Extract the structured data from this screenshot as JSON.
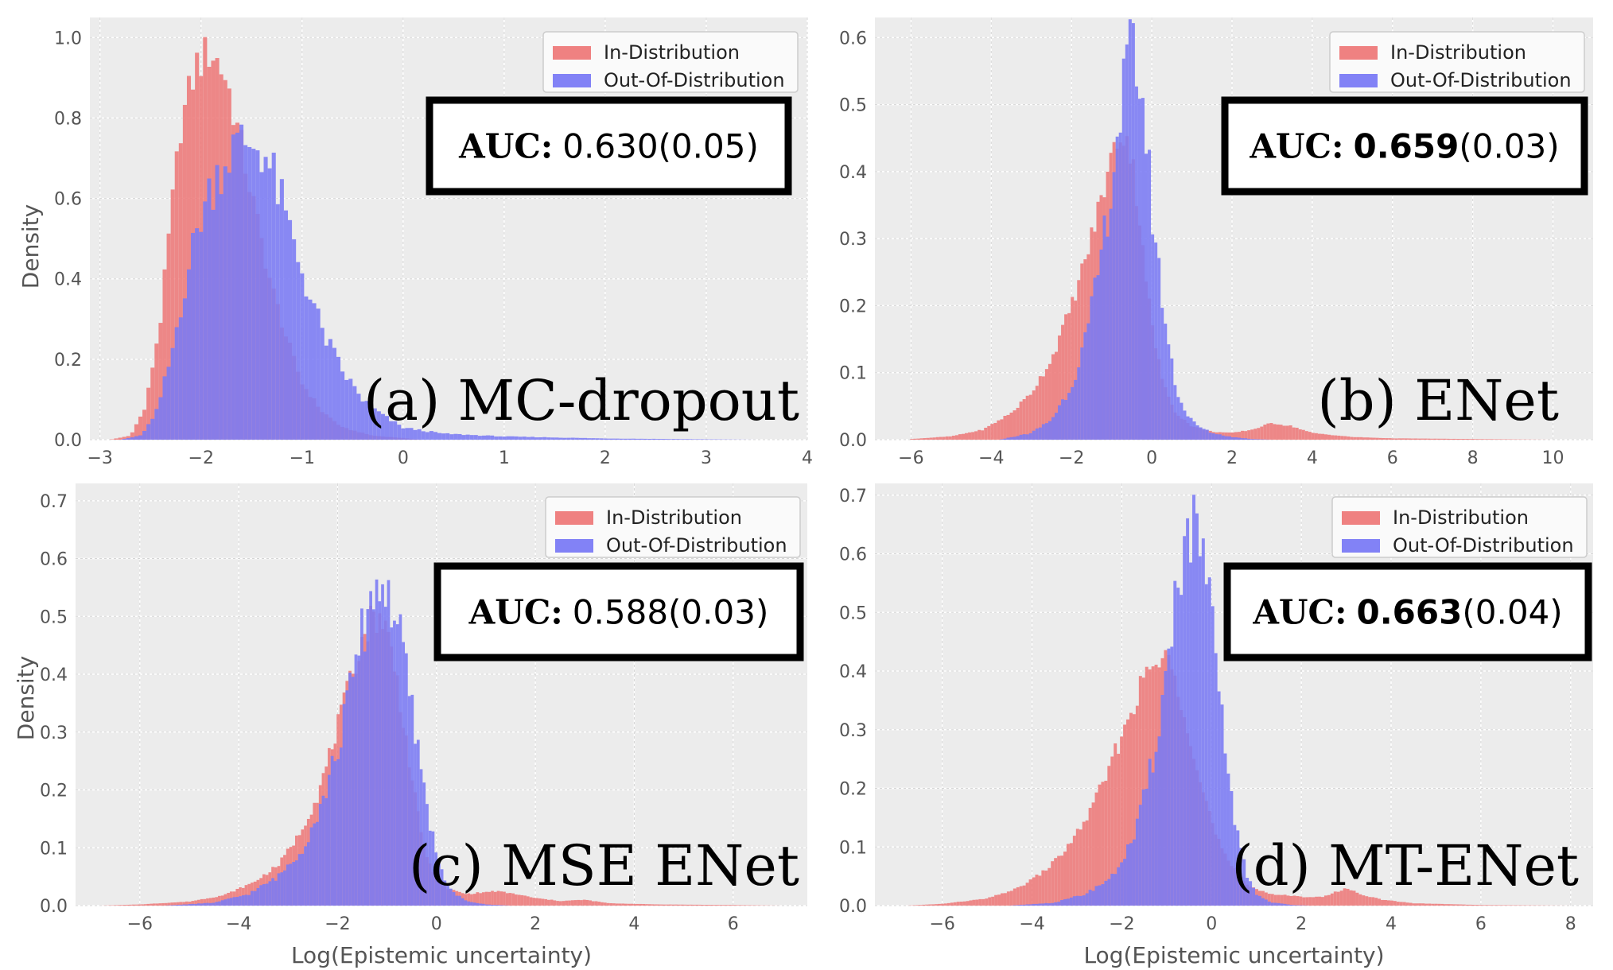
{
  "chart_data": [
    {
      "type": "histogram",
      "panel_label": "(a) MC-dropout",
      "auc_label": "AUC:",
      "auc_value": "0.630",
      "auc_bold": false,
      "auc_std": "(0.05)",
      "xlabel": "",
      "ylabel": "Density",
      "xlim": [
        -3.1,
        4.0
      ],
      "ylim": [
        0,
        1.05
      ],
      "xticks": [
        -3,
        -2,
        -1,
        0,
        1,
        2,
        3,
        4
      ],
      "yticks": [
        0.0,
        0.2,
        0.4,
        0.6,
        0.8,
        1.0
      ],
      "bin_width": 0.04,
      "grid": true,
      "legend_position": "top-right",
      "series": [
        {
          "name": "In-Distribution",
          "color": "#ee7a7a",
          "curve": [
            [
              -2.9,
              0
            ],
            [
              -2.7,
              0.01
            ],
            [
              -2.55,
              0.08
            ],
            [
              -2.4,
              0.3
            ],
            [
              -2.3,
              0.55
            ],
            [
              -2.2,
              0.78
            ],
            [
              -2.05,
              0.93
            ],
            [
              -1.9,
              0.97
            ],
            [
              -1.75,
              0.9
            ],
            [
              -1.6,
              0.73
            ],
            [
              -1.45,
              0.55
            ],
            [
              -1.3,
              0.38
            ],
            [
              -1.15,
              0.25
            ],
            [
              -1.0,
              0.14
            ],
            [
              -0.8,
              0.07
            ],
            [
              -0.6,
              0.03
            ],
            [
              -0.3,
              0.01
            ],
            [
              0.2,
              0
            ]
          ]
        },
        {
          "name": "Out-Of-Distribution",
          "color": "#7b7bf5",
          "curve": [
            [
              -2.8,
              0
            ],
            [
              -2.6,
              0.01
            ],
            [
              -2.45,
              0.06
            ],
            [
              -2.3,
              0.2
            ],
            [
              -2.15,
              0.4
            ],
            [
              -2.0,
              0.56
            ],
            [
              -1.85,
              0.66
            ],
            [
              -1.7,
              0.72
            ],
            [
              -1.55,
              0.74
            ],
            [
              -1.4,
              0.73
            ],
            [
              -1.25,
              0.63
            ],
            [
              -1.1,
              0.5
            ],
            [
              -0.95,
              0.38
            ],
            [
              -0.8,
              0.27
            ],
            [
              -0.6,
              0.17
            ],
            [
              -0.4,
              0.1
            ],
            [
              -0.2,
              0.06
            ],
            [
              0.0,
              0.03
            ],
            [
              0.4,
              0.015
            ],
            [
              1.0,
              0.008
            ],
            [
              2.0,
              0.003
            ],
            [
              3.5,
              0
            ]
          ]
        }
      ]
    },
    {
      "type": "histogram",
      "panel_label": "(b) ENet",
      "auc_label": "AUC:",
      "auc_value": "0.659",
      "auc_bold": true,
      "auc_std": "(0.03)",
      "xlabel": "",
      "ylabel": "",
      "xlim": [
        -6.9,
        11.0
      ],
      "ylim": [
        0,
        0.63
      ],
      "xticks": [
        -6,
        -4,
        -2,
        0,
        2,
        4,
        6,
        8,
        10
      ],
      "yticks": [
        0.0,
        0.1,
        0.2,
        0.3,
        0.4,
        0.5,
        0.6
      ],
      "bin_width": 0.08,
      "grid": true,
      "legend_position": "top-right",
      "series": [
        {
          "name": "In-Distribution",
          "color": "#ee7a7a",
          "curve": [
            [
              -6,
              0.001
            ],
            [
              -5,
              0.005
            ],
            [
              -4.2,
              0.015
            ],
            [
              -3.5,
              0.04
            ],
            [
              -3,
              0.07
            ],
            [
              -2.5,
              0.12
            ],
            [
              -2,
              0.2
            ],
            [
              -1.6,
              0.28
            ],
            [
              -1.3,
              0.35
            ],
            [
              -1.0,
              0.42
            ],
            [
              -0.8,
              0.46
            ],
            [
              -0.6,
              0.45
            ],
            [
              -0.4,
              0.38
            ],
            [
              -0.2,
              0.28
            ],
            [
              0,
              0.17
            ],
            [
              0.3,
              0.08
            ],
            [
              0.6,
              0.04
            ],
            [
              1,
              0.02
            ],
            [
              1.5,
              0.012
            ],
            [
              2,
              0.01
            ],
            [
              2.5,
              0.015
            ],
            [
              3,
              0.025
            ],
            [
              3.5,
              0.02
            ],
            [
              4,
              0.01
            ],
            [
              5,
              0.004
            ],
            [
              6,
              0.002
            ],
            [
              8,
              0.001
            ],
            [
              10,
              0
            ]
          ]
        },
        {
          "name": "Out-Of-Distribution",
          "color": "#7b7bf5",
          "curve": [
            [
              -3.8,
              0
            ],
            [
              -3,
              0.01
            ],
            [
              -2.5,
              0.03
            ],
            [
              -2,
              0.08
            ],
            [
              -1.6,
              0.16
            ],
            [
              -1.3,
              0.26
            ],
            [
              -1.0,
              0.38
            ],
            [
              -0.8,
              0.48
            ],
            [
              -0.6,
              0.56
            ],
            [
              -0.45,
              0.58
            ],
            [
              -0.3,
              0.54
            ],
            [
              -0.15,
              0.46
            ],
            [
              0,
              0.35
            ],
            [
              0.2,
              0.24
            ],
            [
              0.4,
              0.15
            ],
            [
              0.6,
              0.08
            ],
            [
              0.8,
              0.045
            ],
            [
              1.1,
              0.022
            ],
            [
              1.5,
              0.01
            ],
            [
              2,
              0.004
            ],
            [
              2.5,
              0.001
            ],
            [
              3,
              0
            ]
          ]
        }
      ]
    },
    {
      "type": "histogram",
      "panel_label": "(c) MSE ENet",
      "auc_label": "AUC:",
      "auc_value": "0.588",
      "auc_bold": false,
      "auc_std": "(0.03)",
      "xlabel": "Log(Epistemic uncertainty)",
      "ylabel": "Density",
      "xlim": [
        -7.3,
        7.5
      ],
      "ylim": [
        0,
        0.73
      ],
      "xticks": [
        -6,
        -4,
        -2,
        0,
        2,
        4,
        6
      ],
      "yticks": [
        0.0,
        0.1,
        0.2,
        0.3,
        0.4,
        0.5,
        0.6,
        0.7
      ],
      "bin_width": 0.06,
      "grid": true,
      "legend_position": "top-right",
      "series": [
        {
          "name": "In-Distribution",
          "color": "#ee7a7a",
          "curve": [
            [
              -6.8,
              0
            ],
            [
              -6,
              0.002
            ],
            [
              -5,
              0.007
            ],
            [
              -4.3,
              0.018
            ],
            [
              -3.7,
              0.04
            ],
            [
              -3.2,
              0.07
            ],
            [
              -2.8,
              0.12
            ],
            [
              -2.4,
              0.19
            ],
            [
              -2.1,
              0.28
            ],
            [
              -1.8,
              0.37
            ],
            [
              -1.55,
              0.45
            ],
            [
              -1.3,
              0.5
            ],
            [
              -1.1,
              0.5
            ],
            [
              -0.9,
              0.44
            ],
            [
              -0.7,
              0.34
            ],
            [
              -0.5,
              0.22
            ],
            [
              -0.3,
              0.12
            ],
            [
              -0.1,
              0.06
            ],
            [
              0.2,
              0.03
            ],
            [
              0.6,
              0.02
            ],
            [
              1.2,
              0.025
            ],
            [
              1.6,
              0.02
            ],
            [
              2,
              0.013
            ],
            [
              2.5,
              0.008
            ],
            [
              3,
              0.01
            ],
            [
              3.5,
              0.004
            ],
            [
              4.5,
              0.002
            ],
            [
              6,
              0.001
            ],
            [
              7,
              0
            ]
          ]
        },
        {
          "name": "Out-Of-Distribution",
          "color": "#7b7bf5",
          "curve": [
            [
              -5.5,
              0
            ],
            [
              -4.5,
              0.005
            ],
            [
              -3.8,
              0.02
            ],
            [
              -3.2,
              0.05
            ],
            [
              -2.7,
              0.1
            ],
            [
              -2.3,
              0.18
            ],
            [
              -2.0,
              0.27
            ],
            [
              -1.75,
              0.37
            ],
            [
              -1.5,
              0.47
            ],
            [
              -1.3,
              0.54
            ],
            [
              -1.1,
              0.56
            ],
            [
              -0.9,
              0.52
            ],
            [
              -0.7,
              0.45
            ],
            [
              -0.5,
              0.34
            ],
            [
              -0.3,
              0.23
            ],
            [
              -0.1,
              0.13
            ],
            [
              0.1,
              0.06
            ],
            [
              0.3,
              0.025
            ],
            [
              0.6,
              0.008
            ],
            [
              1,
              0.002
            ],
            [
              1.5,
              0
            ]
          ]
        }
      ]
    },
    {
      "type": "histogram",
      "panel_label": "(d) MT-ENet",
      "auc_label": "AUC:",
      "auc_value": "0.663",
      "auc_bold": true,
      "auc_std": "(0.04)",
      "xlabel": "Log(Epistemic uncertainty)",
      "ylabel": "",
      "xlim": [
        -7.5,
        8.5
      ],
      "ylim": [
        0,
        0.72
      ],
      "xticks": [
        -6,
        -4,
        -2,
        0,
        2,
        4,
        6,
        8
      ],
      "yticks": [
        0.0,
        0.1,
        0.2,
        0.3,
        0.4,
        0.5,
        0.6,
        0.7
      ],
      "bin_width": 0.07,
      "grid": true,
      "legend_position": "top-right",
      "series": [
        {
          "name": "In-Distribution",
          "color": "#ee7a7a",
          "curve": [
            [
              -6.8,
              0
            ],
            [
              -6,
              0.003
            ],
            [
              -5,
              0.012
            ],
            [
              -4.3,
              0.03
            ],
            [
              -3.7,
              0.06
            ],
            [
              -3.2,
              0.1
            ],
            [
              -2.7,
              0.16
            ],
            [
              -2.3,
              0.23
            ],
            [
              -1.9,
              0.31
            ],
            [
              -1.6,
              0.37
            ],
            [
              -1.3,
              0.41
            ],
            [
              -1.0,
              0.42
            ],
            [
              -0.8,
              0.39
            ],
            [
              -0.5,
              0.3
            ],
            [
              -0.2,
              0.2
            ],
            [
              0.1,
              0.12
            ],
            [
              0.4,
              0.07
            ],
            [
              0.8,
              0.035
            ],
            [
              1.3,
              0.02
            ],
            [
              2,
              0.015
            ],
            [
              2.5,
              0.015
            ],
            [
              3,
              0.03
            ],
            [
              3.3,
              0.02
            ],
            [
              3.8,
              0.01
            ],
            [
              4.5,
              0.004
            ],
            [
              6,
              0.001
            ],
            [
              8,
              0
            ]
          ]
        },
        {
          "name": "Out-Of-Distribution",
          "color": "#7b7bf5",
          "curve": [
            [
              -4.5,
              0
            ],
            [
              -3.5,
              0.005
            ],
            [
              -2.8,
              0.02
            ],
            [
              -2.2,
              0.05
            ],
            [
              -1.7,
              0.12
            ],
            [
              -1.3,
              0.25
            ],
            [
              -1.0,
              0.4
            ],
            [
              -0.8,
              0.53
            ],
            [
              -0.6,
              0.62
            ],
            [
              -0.4,
              0.64
            ],
            [
              -0.2,
              0.6
            ],
            [
              0,
              0.48
            ],
            [
              0.2,
              0.34
            ],
            [
              0.4,
              0.21
            ],
            [
              0.6,
              0.11
            ],
            [
              0.8,
              0.05
            ],
            [
              1.0,
              0.02
            ],
            [
              1.3,
              0.006
            ],
            [
              1.8,
              0.001
            ],
            [
              2.2,
              0
            ]
          ]
        }
      ]
    }
  ]
}
